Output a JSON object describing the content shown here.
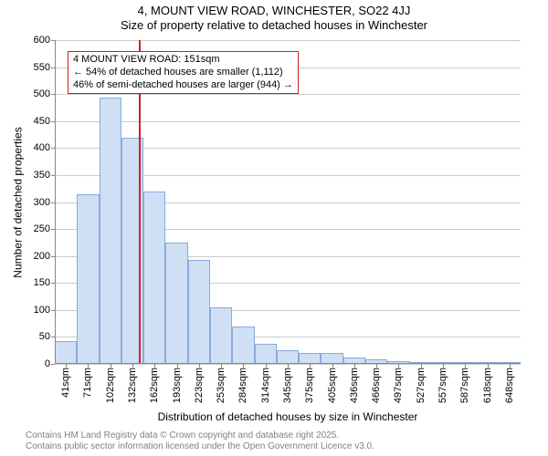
{
  "title": {
    "line1": "4, MOUNT VIEW ROAD, WINCHESTER, SO22 4JJ",
    "line2": "Size of property relative to detached houses in Winchester",
    "fontsize": 13,
    "color": "#000000"
  },
  "chart": {
    "type": "histogram",
    "background_color": "#ffffff",
    "grid_color": "#cccccc",
    "axis_color": "#888888",
    "bar_fill": "#cfe0f4",
    "bar_border": "#88aadd",
    "x_categories": [
      "41sqm",
      "71sqm",
      "102sqm",
      "132sqm",
      "162sqm",
      "193sqm",
      "223sqm",
      "253sqm",
      "284sqm",
      "314sqm",
      "345sqm",
      "375sqm",
      "405sqm",
      "436sqm",
      "466sqm",
      "497sqm",
      "527sqm",
      "557sqm",
      "587sqm",
      "618sqm",
      "648sqm"
    ],
    "values": [
      43,
      315,
      493,
      420,
      320,
      225,
      193,
      105,
      70,
      38,
      25,
      20,
      20,
      12,
      8,
      5,
      3,
      2,
      2,
      1,
      1
    ],
    "ylim": [
      0,
      600
    ],
    "ytick_step": 50,
    "yticks": [
      0,
      50,
      100,
      150,
      200,
      250,
      300,
      350,
      400,
      450,
      500,
      550,
      600
    ],
    "x_tick_fontsize": 11,
    "y_tick_fontsize": 11,
    "ylabel": "Number of detached properties",
    "xlabel": "Distribution of detached houses by size in Winchester",
    "label_fontsize": 12
  },
  "marker": {
    "color": "#cc2222",
    "position_value": 151,
    "x_min": 41,
    "x_max": 648
  },
  "annotation": {
    "border_color": "#d02020",
    "background": "#ffffff",
    "fontsize": 11,
    "line1": "4 MOUNT VIEW ROAD: 151sqm",
    "line2": "← 54% of detached houses are smaller (1,112)",
    "line3": "46% of semi-detached houses are larger (944) →",
    "top_offset": 12,
    "left_offset": 14
  },
  "footer": {
    "line1": "Contains HM Land Registry data © Crown copyright and database right 2025.",
    "line2": "Contains public sector information licensed under the Open Government Licence v3.0.",
    "color": "#808080",
    "fontsize": 10
  }
}
